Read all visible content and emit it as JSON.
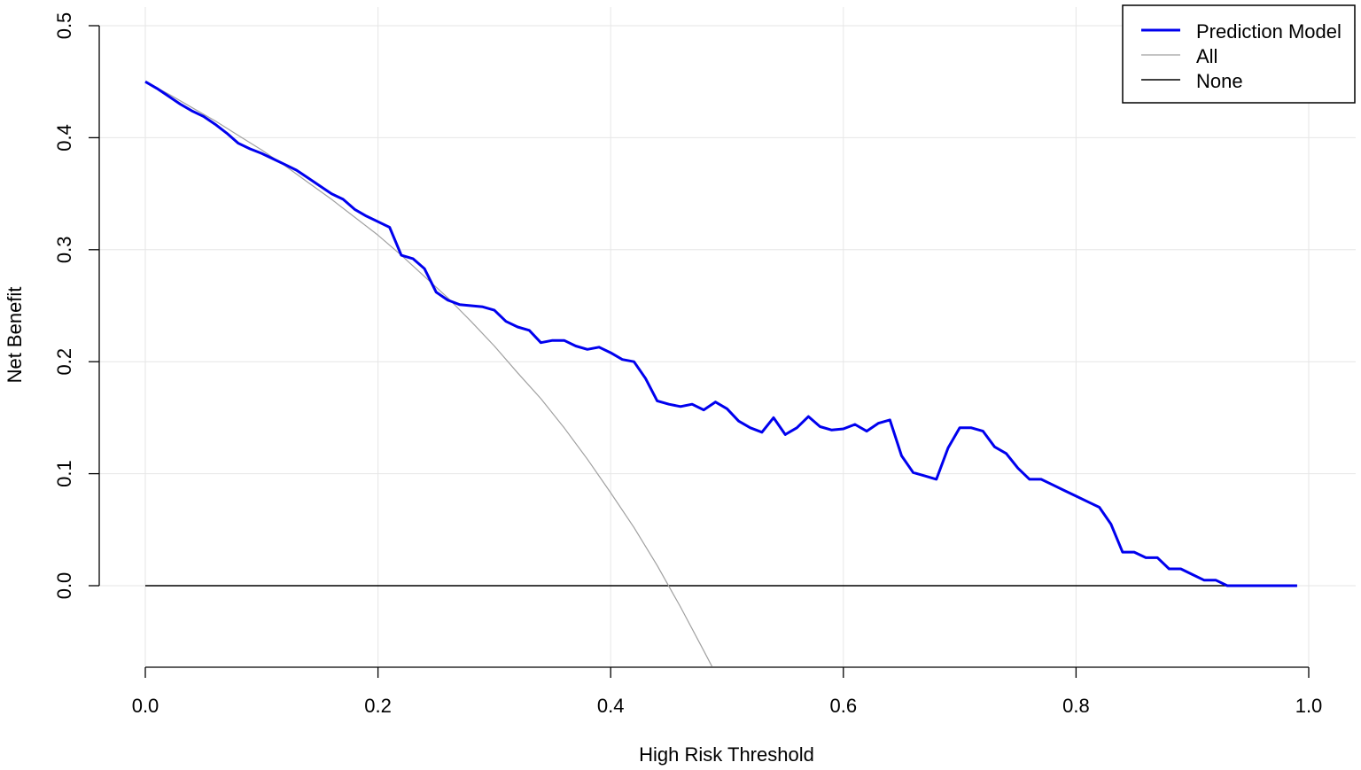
{
  "chart_data": {
    "type": "line",
    "title": "",
    "xlabel": "High Risk Threshold",
    "ylabel": "Net Benefit",
    "xlim": [
      0.0,
      1.0
    ],
    "ylim": [
      -0.07,
      0.5
    ],
    "x_ticks": [
      0.0,
      0.2,
      0.4,
      0.6,
      0.8,
      1.0
    ],
    "x_tick_labels": [
      "0.0",
      "0.2",
      "0.4",
      "0.6",
      "0.8",
      "1.0"
    ],
    "y_ticks": [
      0.0,
      0.1,
      0.2,
      0.3,
      0.4,
      0.5
    ],
    "y_tick_labels": [
      "0.0",
      "0.1",
      "0.2",
      "0.3",
      "0.4",
      "0.5"
    ],
    "grid": true,
    "legend_position": "top-right",
    "series": [
      {
        "name": "Prediction Model",
        "color": "#0000ee",
        "x": [
          0.0,
          0.01,
          0.02,
          0.03,
          0.04,
          0.05,
          0.06,
          0.07,
          0.08,
          0.09,
          0.1,
          0.11,
          0.12,
          0.13,
          0.14,
          0.15,
          0.16,
          0.17,
          0.18,
          0.19,
          0.2,
          0.21,
          0.22,
          0.23,
          0.24,
          0.25,
          0.26,
          0.27,
          0.28,
          0.29,
          0.3,
          0.31,
          0.32,
          0.33,
          0.34,
          0.35,
          0.36,
          0.37,
          0.38,
          0.39,
          0.4,
          0.41,
          0.42,
          0.43,
          0.44,
          0.45,
          0.46,
          0.47,
          0.48,
          0.49,
          0.5,
          0.51,
          0.52,
          0.53,
          0.54,
          0.55,
          0.56,
          0.57,
          0.58,
          0.59,
          0.6,
          0.61,
          0.62,
          0.63,
          0.64,
          0.65,
          0.66,
          0.67,
          0.68,
          0.69,
          0.7,
          0.71,
          0.72,
          0.73,
          0.74,
          0.75,
          0.76,
          0.77,
          0.78,
          0.79,
          0.8,
          0.81,
          0.82,
          0.83,
          0.84,
          0.85,
          0.86,
          0.87,
          0.88,
          0.89,
          0.9,
          0.91,
          0.92,
          0.93,
          0.94,
          0.95,
          0.96,
          0.97,
          0.98,
          0.99
        ],
        "values": [
          0.45,
          0.444,
          0.437,
          0.43,
          0.424,
          0.419,
          0.412,
          0.404,
          0.395,
          0.39,
          0.386,
          0.381,
          0.376,
          0.371,
          0.364,
          0.357,
          0.35,
          0.345,
          0.336,
          0.33,
          0.325,
          0.32,
          0.295,
          0.292,
          0.283,
          0.262,
          0.255,
          0.251,
          0.25,
          0.249,
          0.246,
          0.236,
          0.231,
          0.228,
          0.217,
          0.219,
          0.219,
          0.214,
          0.211,
          0.213,
          0.208,
          0.202,
          0.2,
          0.185,
          0.165,
          0.162,
          0.16,
          0.162,
          0.157,
          0.164,
          0.158,
          0.147,
          0.141,
          0.137,
          0.15,
          0.135,
          0.141,
          0.151,
          0.142,
          0.139,
          0.14,
          0.144,
          0.138,
          0.145,
          0.148,
          0.116,
          0.101,
          0.098,
          0.095,
          0.123,
          0.141,
          0.141,
          0.138,
          0.124,
          0.118,
          0.105,
          0.095,
          0.095,
          0.09,
          0.085,
          0.08,
          0.075,
          0.07,
          0.055,
          0.03,
          0.03,
          0.025,
          0.025,
          0.015,
          0.015,
          0.01,
          0.005,
          0.005,
          0.0,
          0.0,
          0.0,
          0.0,
          0.0,
          0.0,
          0.0
        ]
      },
      {
        "name": "All",
        "color": "#a0a0a0",
        "x": [
          0.0,
          0.02,
          0.04,
          0.06,
          0.08,
          0.1,
          0.12,
          0.14,
          0.16,
          0.18,
          0.2,
          0.22,
          0.24,
          0.26,
          0.28,
          0.3,
          0.32,
          0.34,
          0.36,
          0.38,
          0.4,
          0.42,
          0.44,
          0.46,
          0.48,
          0.49
        ],
        "values": [
          0.45,
          0.439,
          0.427,
          0.415,
          0.402,
          0.389,
          0.375,
          0.36,
          0.345,
          0.329,
          0.313,
          0.295,
          0.276,
          0.257,
          0.236,
          0.214,
          0.19,
          0.167,
          0.141,
          0.113,
          0.083,
          0.052,
          0.018,
          -0.019,
          -0.058,
          -0.078
        ]
      },
      {
        "name": "None",
        "color": "#000000",
        "x": [
          0.0,
          0.99
        ],
        "values": [
          0.0,
          0.0
        ]
      }
    ]
  }
}
